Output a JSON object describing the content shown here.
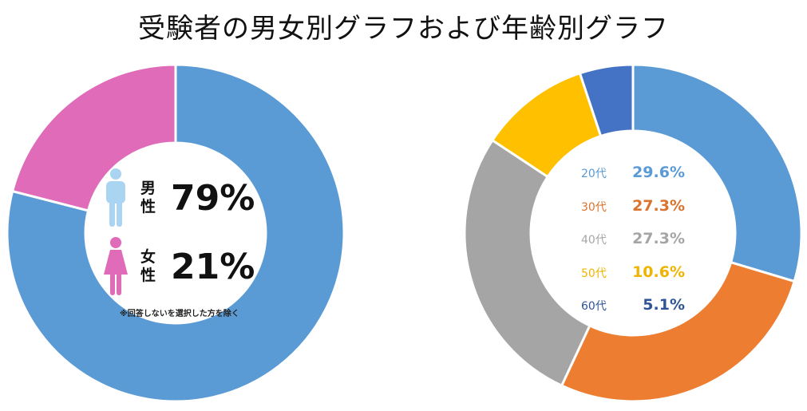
{
  "title": "受験者の男女別グラフおよび年齢別グラフ",
  "colors": {
    "male": "#5B9BD5",
    "female": "#E06BB9",
    "male_icon": "#A9D4F2",
    "female_icon": "#E06BB9",
    "age_20s": "#5B9BD5",
    "age_30s": "#ED7D31",
    "age_40s": "#A5A5A5",
    "age_50s": "#FFC000",
    "age_60s": "#4472C4",
    "age_20s_text": "#5B9BD5",
    "age_30s_text": "#D9732E",
    "age_40s_text": "#A5A5A5",
    "age_50s_text": "#F0B400",
    "age_60s_text": "#2F5597"
  },
  "gender": {
    "male_label": "男\n性",
    "male_pct": "79%",
    "male_icon": "male-person-icon",
    "female_label": "女\n性",
    "female_pct": "21%",
    "female_icon": "female-person-icon",
    "note": "※回答しないを選択した方を除く"
  },
  "chart_data": [
    {
      "type": "pie",
      "style": "donut",
      "categories": [
        "男性",
        "女性"
      ],
      "values": [
        79,
        21
      ],
      "unit": "%"
    },
    {
      "type": "pie",
      "style": "donut",
      "categories": [
        "20代",
        "30代",
        "40代",
        "50代",
        "60代"
      ],
      "values": [
        29.6,
        27.3,
        27.3,
        10.6,
        5.1
      ],
      "unit": "%"
    }
  ],
  "age_legend": [
    {
      "label": "20代",
      "value": "29.6%"
    },
    {
      "label": "30代",
      "value": "27.3%"
    },
    {
      "label": "40代",
      "value": "27.3%"
    },
    {
      "label": "50代",
      "value": "10.6%"
    },
    {
      "label": "60代",
      "value": "5.1%"
    }
  ]
}
